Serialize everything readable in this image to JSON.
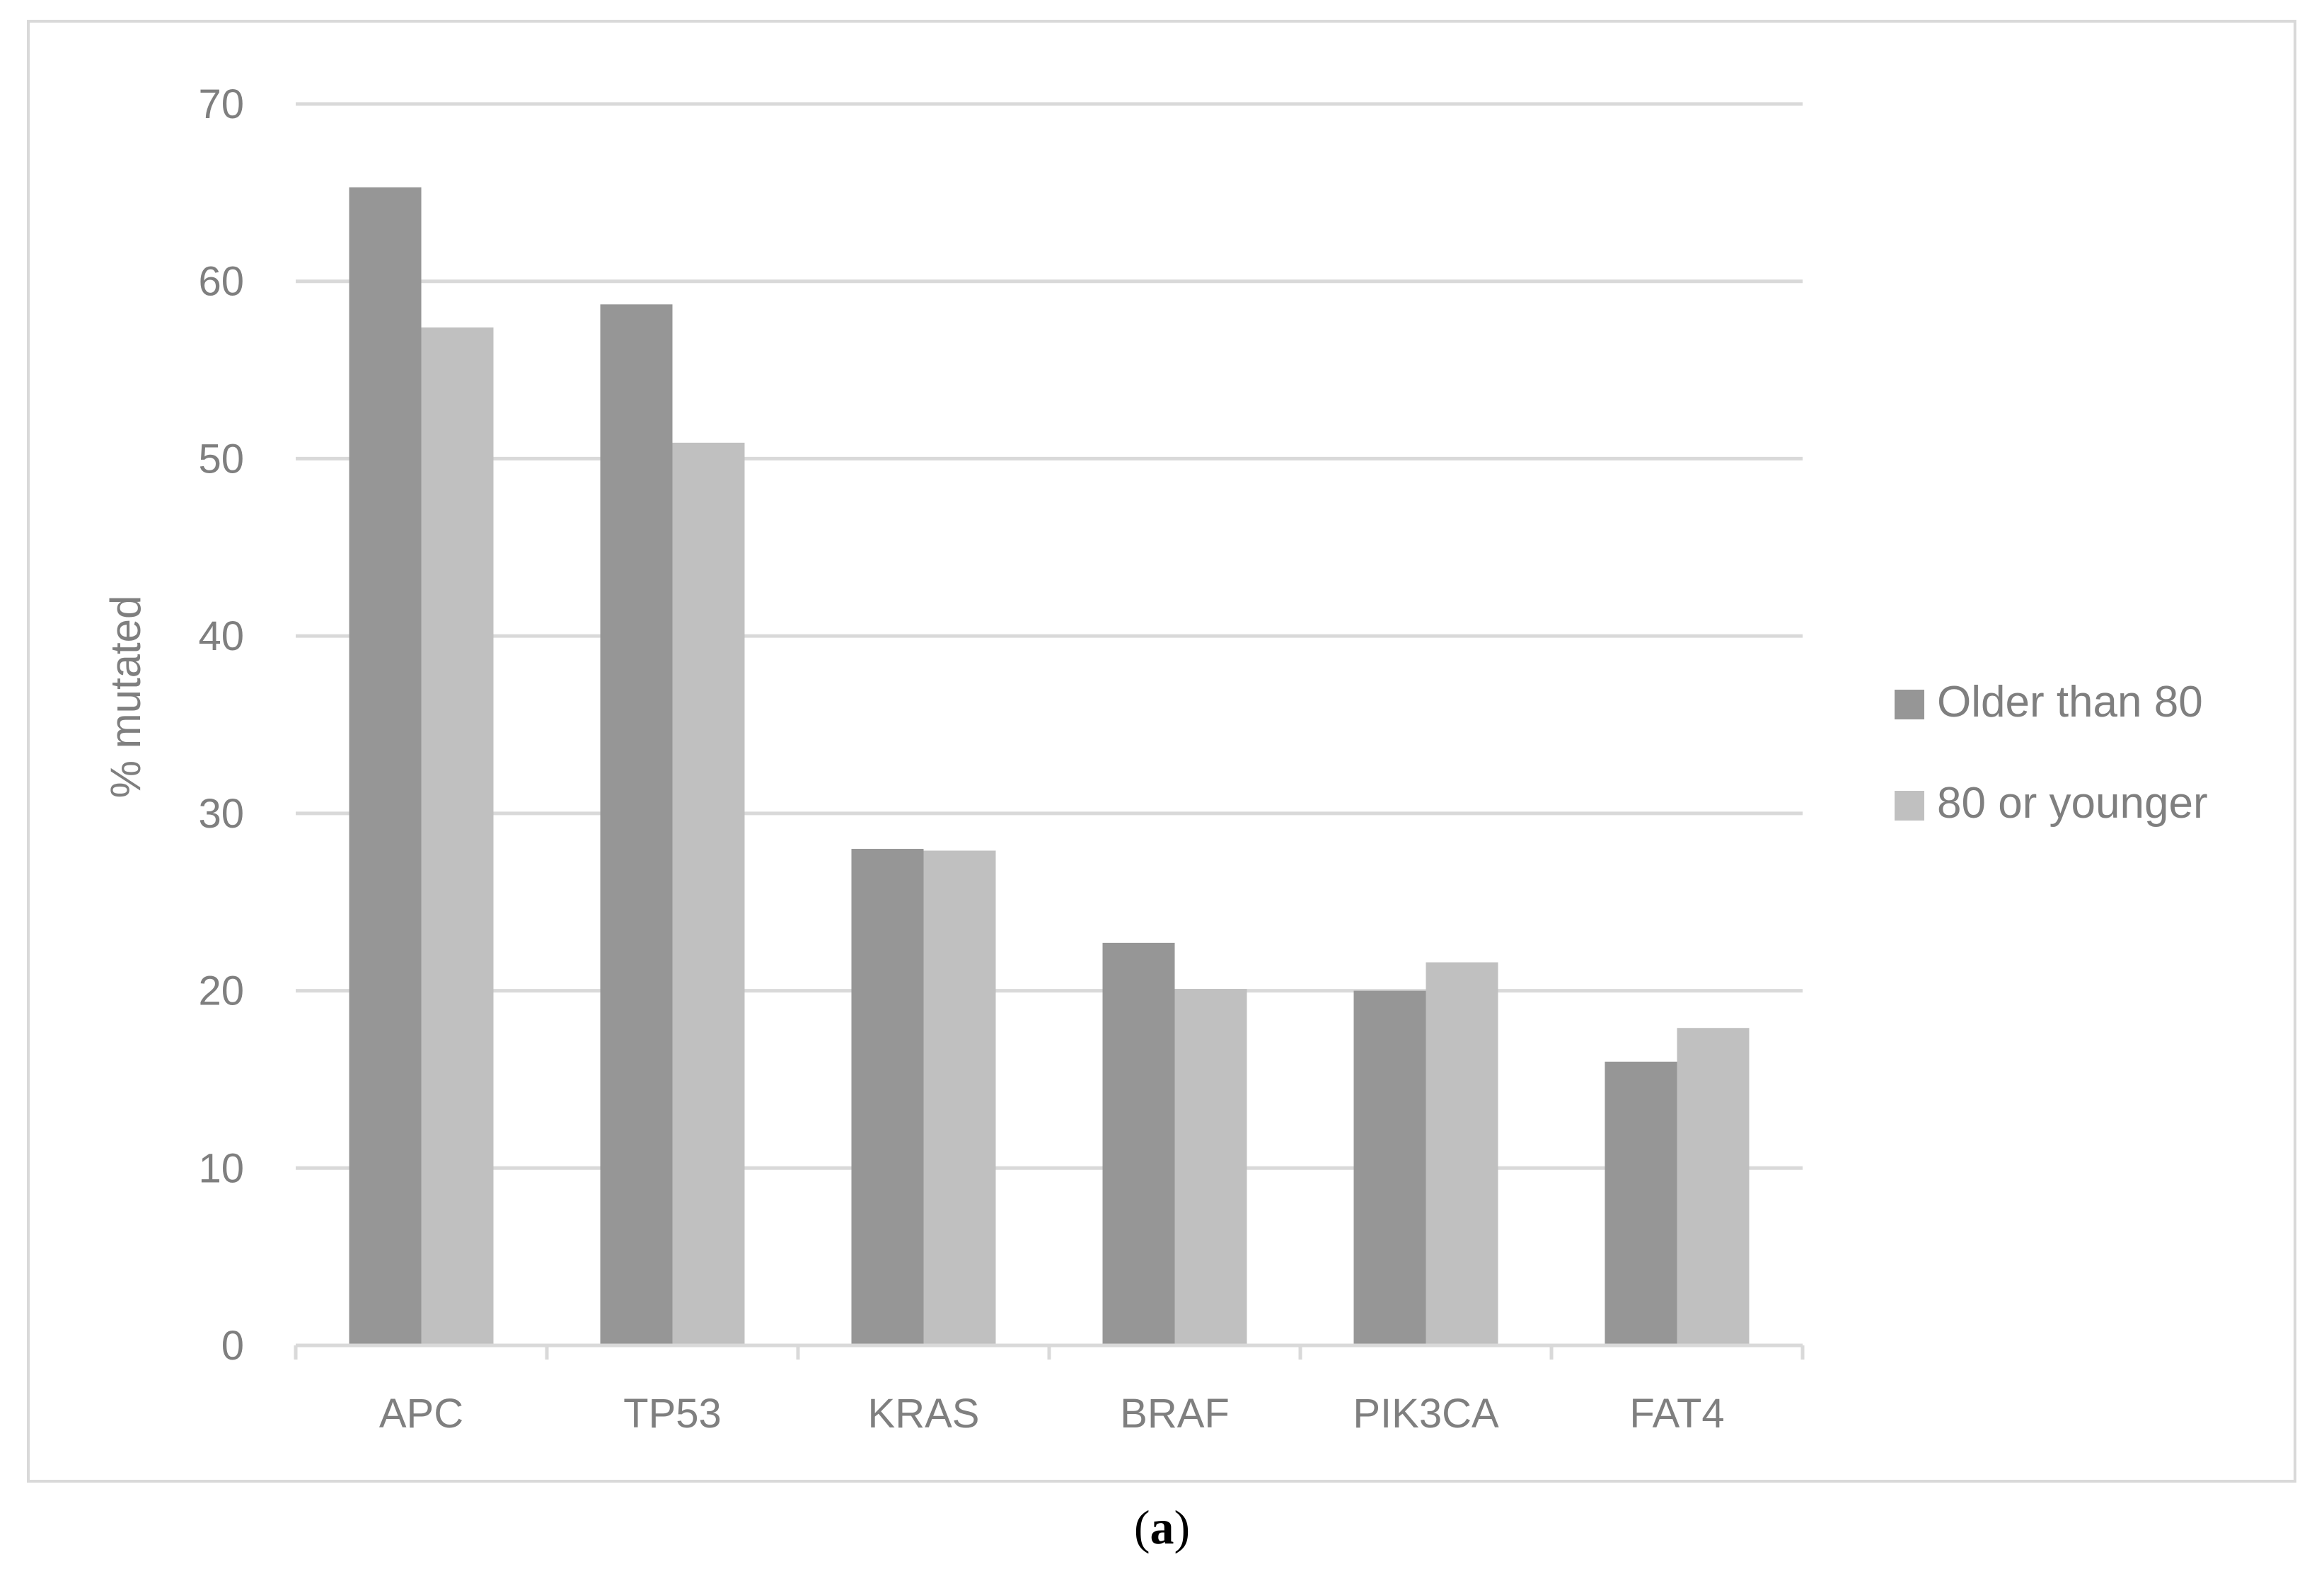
{
  "chart_data": {
    "type": "bar",
    "title": "",
    "xlabel": "",
    "ylabel": "% mutated",
    "ylim": [
      0,
      70
    ],
    "yticks": [
      0,
      10,
      20,
      30,
      40,
      50,
      60,
      70
    ],
    "categories": [
      "APC",
      "TP53",
      "KRAS",
      "BRAF",
      "PIK3CA",
      "FAT4"
    ],
    "series": [
      {
        "name": "Older than 80",
        "color": "#969696",
        "values": [
          65.3,
          58.7,
          28.0,
          22.7,
          20.0,
          16.0
        ]
      },
      {
        "name": "80 or younger",
        "color": "#c0c0c0",
        "values": [
          57.4,
          50.9,
          27.9,
          20.1,
          21.6,
          17.9
        ]
      }
    ],
    "grid": true,
    "legend_position": "right"
  },
  "caption": {
    "open": "(",
    "letter": "a",
    "close": ")"
  }
}
